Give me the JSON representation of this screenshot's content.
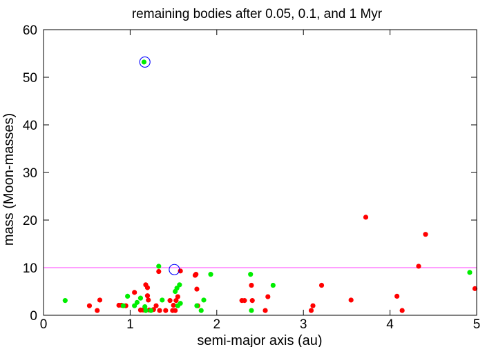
{
  "chart_data": {
    "type": "scatter",
    "title": "remaining bodies after 0.05, 0.1, and 1 Myr",
    "xlabel": "semi-major axis (au)",
    "ylabel": "mass (Moon-masses)",
    "xlim": [
      0,
      5
    ],
    "ylim": [
      0,
      60
    ],
    "xticks": [
      0,
      1,
      2,
      3,
      4,
      5
    ],
    "yticks": [
      0,
      10,
      20,
      30,
      40,
      50,
      60
    ],
    "grid": false,
    "legend": "none",
    "series": [
      {
        "color": "#ff0000",
        "points": [
          [
            0.53,
            2.0
          ],
          [
            0.62,
            1.0
          ],
          [
            0.65,
            3.2
          ],
          [
            0.87,
            2.1
          ],
          [
            0.9,
            2.1
          ],
          [
            0.95,
            2.0
          ],
          [
            1.05,
            4.8
          ],
          [
            1.12,
            1.1
          ],
          [
            1.15,
            1.1
          ],
          [
            1.18,
            6.4
          ],
          [
            1.2,
            5.8
          ],
          [
            1.2,
            4.1
          ],
          [
            1.21,
            3.2
          ],
          [
            1.22,
            1.1
          ],
          [
            1.27,
            1.2
          ],
          [
            1.3,
            2.0
          ],
          [
            1.33,
            9.2
          ],
          [
            1.34,
            1.0
          ],
          [
            1.41,
            1.0
          ],
          [
            1.46,
            3.1
          ],
          [
            1.49,
            1.0
          ],
          [
            1.5,
            2.1
          ],
          [
            1.52,
            1.0
          ],
          [
            1.53,
            3.1
          ],
          [
            1.55,
            3.9
          ],
          [
            1.58,
            9.3
          ],
          [
            1.75,
            8.4
          ],
          [
            1.76,
            8.6
          ],
          [
            1.77,
            5.5
          ],
          [
            1.78,
            2.0
          ],
          [
            2.29,
            3.1
          ],
          [
            2.32,
            3.1
          ],
          [
            2.4,
            6.3
          ],
          [
            2.41,
            3.1
          ],
          [
            2.56,
            1.0
          ],
          [
            2.59,
            3.9
          ],
          [
            3.09,
            1.0
          ],
          [
            3.11,
            2.0
          ],
          [
            3.21,
            6.3
          ],
          [
            3.55,
            3.2
          ],
          [
            3.72,
            20.6
          ],
          [
            4.08,
            4.0
          ],
          [
            4.14,
            1.0
          ],
          [
            4.33,
            10.3
          ],
          [
            4.41,
            17.0
          ],
          [
            4.98,
            5.6
          ]
        ]
      },
      {
        "color": "#00ee00",
        "points": [
          [
            0.25,
            3.1
          ],
          [
            0.92,
            2.0
          ],
          [
            0.97,
            4.0
          ],
          [
            1.05,
            2.0
          ],
          [
            1.08,
            2.7
          ],
          [
            1.12,
            3.6
          ],
          [
            1.16,
            53.2
          ],
          [
            1.17,
            1.8
          ],
          [
            1.18,
            1.0
          ],
          [
            1.24,
            1.0
          ],
          [
            1.33,
            10.3
          ],
          [
            1.37,
            3.2
          ],
          [
            1.52,
            5.0
          ],
          [
            1.54,
            5.7
          ],
          [
            1.55,
            2.0
          ],
          [
            1.57,
            6.4
          ],
          [
            1.58,
            2.5
          ],
          [
            1.77,
            2.0
          ],
          [
            1.82,
            1.0
          ],
          [
            1.85,
            3.2
          ],
          [
            1.93,
            8.6
          ],
          [
            2.39,
            8.6
          ],
          [
            2.4,
            1.0
          ],
          [
            2.65,
            6.3
          ],
          [
            4.92,
            9.0
          ]
        ]
      }
    ],
    "circled_points": [
      [
        1.17,
        53.2
      ],
      [
        1.51,
        9.6
      ]
    ],
    "circle_color": "#0000ff",
    "reference_line": {
      "y": 10,
      "color": "#ff66ff"
    }
  }
}
